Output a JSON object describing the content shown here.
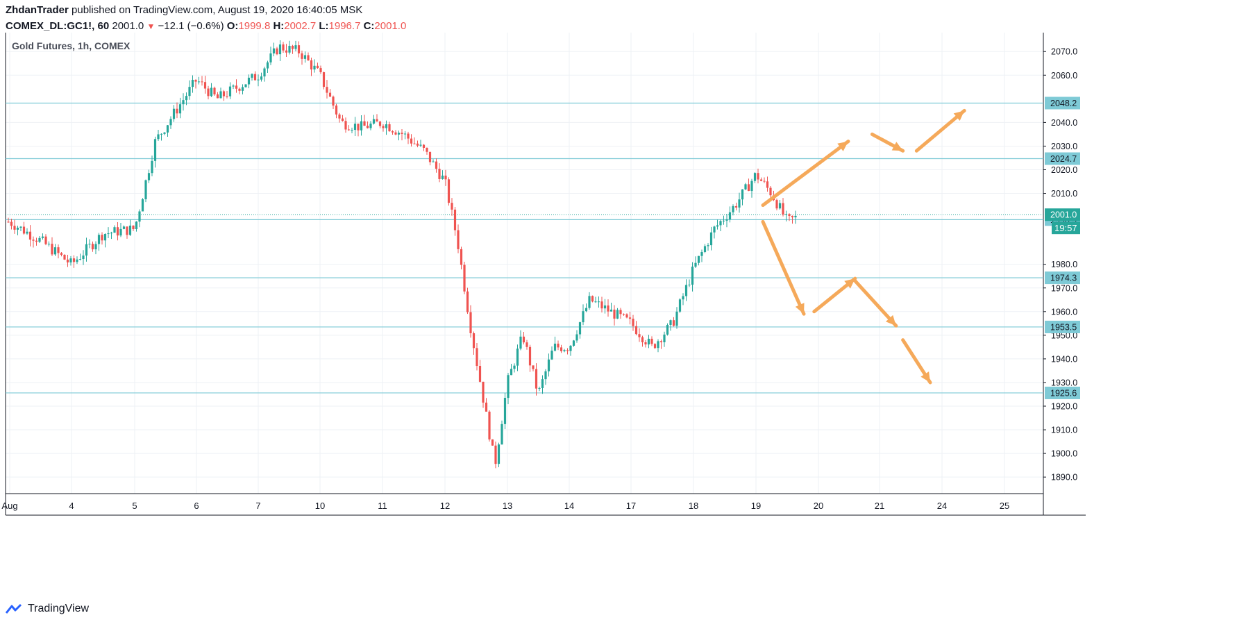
{
  "header": {
    "author": "ZhdanTrader",
    "published_text": "published on TradingView.com, August 19, 2020 16:40:05 MSK",
    "symbol": "COMEX_DL:GC1!, 60",
    "last": "2001.0",
    "change": "−12.1 (−0.6%)",
    "o_label": "O:",
    "o_value": "1999.8",
    "h_label": "H:",
    "h_value": "2002.7",
    "l_label": "L:",
    "l_value": "1996.7",
    "c_label": "C:",
    "c_value": "2001.0"
  },
  "footer": {
    "brand": "TradingView"
  },
  "colors": {
    "up": "#26a69a",
    "down": "#ef5350",
    "level_line": "#7ecad6",
    "level_badge": "#7ecad6",
    "price_badge": "#26a69a",
    "arrow": "#f5a95a",
    "grid": "#eef1f5"
  },
  "chart_data": {
    "type": "candlestick",
    "title": "Gold Futures, 1h, COMEX",
    "ylim": [
      1883,
      2078
    ],
    "y_ticks": [
      "2070.0",
      "2060.0",
      "2040.0",
      "2030.0",
      "2020.0",
      "2010.0",
      "1980.0",
      "1970.0",
      "1960.0",
      "1950.0",
      "1940.0",
      "1930.0",
      "1920.0",
      "1910.0",
      "1900.0",
      "1890.0"
    ],
    "x_ticks": [
      "Aug",
      "4",
      "5",
      "6",
      "7",
      "10",
      "11",
      "12",
      "13",
      "14",
      "17",
      "18",
      "19",
      "20",
      "21",
      "24",
      "25"
    ],
    "levels": [
      {
        "label": "2048.2",
        "value": 2048.2
      },
      {
        "label": "2024.7",
        "value": 2024.7
      },
      {
        "label": "1998.9",
        "value": 1998.9
      },
      {
        "label": "1974.3",
        "value": 1974.3
      },
      {
        "label": "1953.5",
        "value": 1953.5
      },
      {
        "label": "1925.6",
        "value": 1925.6
      }
    ],
    "current_price": {
      "label": "2001.0",
      "value": 2001.0,
      "countdown": "19:57"
    },
    "path": [
      [
        "Aug",
        1998
      ],
      [
        "Aug",
        1990
      ],
      [
        "4",
        1980
      ],
      [
        "4",
        1993
      ],
      [
        "5",
        1995
      ],
      [
        "5",
        2032
      ],
      [
        "5",
        2045
      ],
      [
        "6",
        2058
      ],
      [
        "6",
        2050
      ],
      [
        "6",
        2055
      ],
      [
        "7",
        2060
      ],
      [
        "7",
        2072
      ],
      [
        "7",
        2070
      ],
      [
        "10",
        2060
      ],
      [
        "10",
        2040
      ],
      [
        "10",
        2038
      ],
      [
        "11",
        2040
      ],
      [
        "11",
        2035
      ],
      [
        "11",
        2028
      ],
      [
        "12",
        2015
      ],
      [
        "12",
        1990
      ],
      [
        "12",
        1955
      ],
      [
        "12",
        1925
      ],
      [
        "12",
        1895
      ],
      [
        "13",
        1930
      ],
      [
        "13",
        1950
      ],
      [
        "13",
        1925
      ],
      [
        "13",
        1945
      ],
      [
        "14",
        1945
      ],
      [
        "14",
        1965
      ],
      [
        "14",
        1960
      ],
      [
        "17",
        1955
      ],
      [
        "17",
        1945
      ],
      [
        "17",
        1955
      ],
      [
        "18",
        1978
      ],
      [
        "18",
        1995
      ],
      [
        "18",
        2005
      ],
      [
        "19",
        2018
      ],
      [
        "19",
        2010
      ],
      [
        "19",
        1998
      ],
      [
        "19",
        2001
      ]
    ],
    "forecast_arrows": [
      {
        "from": [
          1999,
          2005
        ],
        "to": [
          2024,
          2032
        ]
      },
      {
        "from": [
          2031,
          2035
        ],
        "to": [
          2040,
          2028
        ]
      },
      {
        "from": [
          2044,
          2028
        ],
        "to": [
          2058,
          2045
        ]
      },
      {
        "from": [
          1999,
          1998
        ],
        "to": [
          2011,
          1959
        ]
      },
      {
        "from": [
          2014,
          1960
        ],
        "to": [
          2026,
          1974
        ]
      },
      {
        "from": [
          2026,
          1973
        ],
        "to": [
          2038,
          1954
        ]
      },
      {
        "from": [
          2040,
          1948
        ],
        "to": [
          2048,
          1930
        ]
      }
    ]
  }
}
